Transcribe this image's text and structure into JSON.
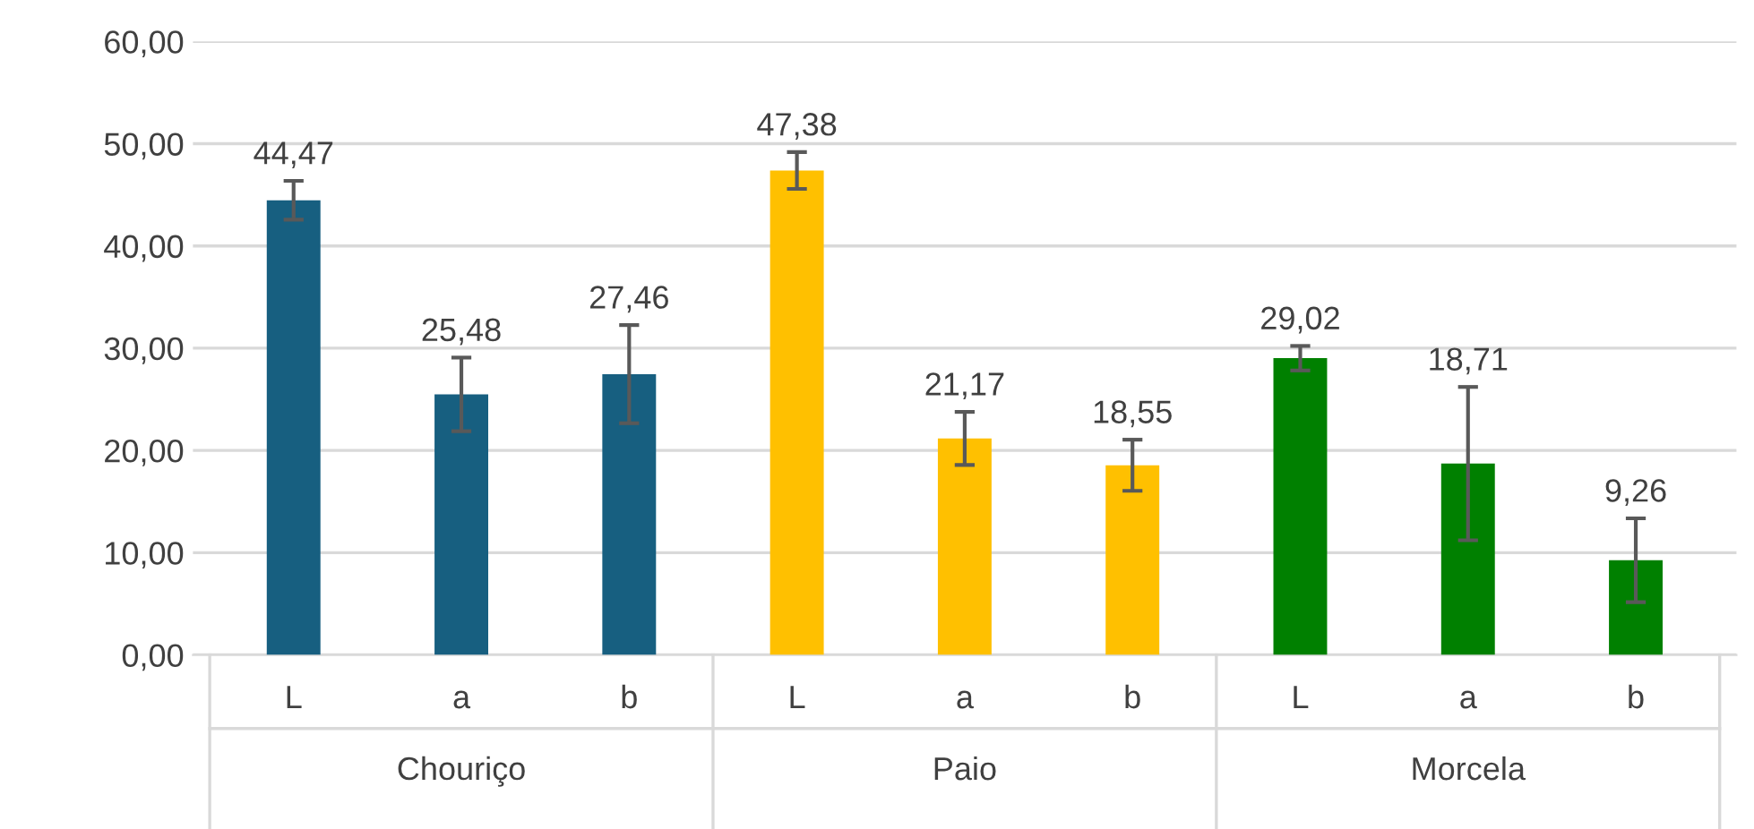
{
  "chart_data": {
    "type": "bar",
    "categories": [
      "L",
      "a",
      "b",
      "L",
      "a",
      "b",
      "L",
      "a",
      "b"
    ],
    "values": [
      44.47,
      25.48,
      27.46,
      47.38,
      21.17,
      18.55,
      29.02,
      18.71,
      9.26
    ],
    "colors": [
      "#175f80",
      "#175f80",
      "#175f80",
      "#ffc000",
      "#ffc000",
      "#ffc000",
      "#008000",
      "#008000",
      "#008000"
    ],
    "errors": [
      1.9,
      3.6,
      4.8,
      1.8,
      2.6,
      2.5,
      1.2,
      7.5,
      4.1
    ],
    "value_labels": [
      "44,47",
      "25,48",
      "27,46",
      "47,38",
      "21,17",
      "18,55",
      "29,02",
      "18,71",
      "9,26"
    ],
    "annotations": [
      "Chouriço",
      "Paio",
      "Morcela"
    ],
    "ylim": [
      0,
      60
    ],
    "yticks": [
      {
        "value": 0,
        "label": "0,00"
      },
      {
        "value": 10,
        "label": "10,00"
      },
      {
        "value": 20,
        "label": "20,00"
      },
      {
        "value": 30,
        "label": "30,00"
      },
      {
        "value": 40,
        "label": "40,00"
      },
      {
        "value": 50,
        "label": "50,00"
      },
      {
        "value": 60,
        "label": "60,00"
      }
    ],
    "grid": "y",
    "legend": false
  }
}
